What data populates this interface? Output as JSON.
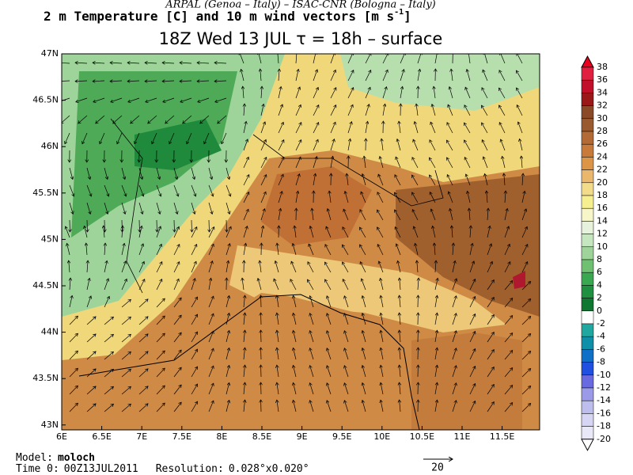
{
  "header": {
    "line1": "ARPAL (Genoa – Italy)  –  ISAC-CNR (Bologna – Italy)",
    "line2": "2 m Temperature [C] and 10 m wind vectors [m s",
    "line2_sup": "-1",
    "line2_end": "]",
    "line3": "18Z Wed 13 JUL  τ = 18h  –  surface"
  },
  "map": {
    "lat_ticks": [
      "47N",
      "46.5N",
      "46N",
      "45.5N",
      "45N",
      "44.5N",
      "44N",
      "43.5N",
      "43N"
    ],
    "lon_ticks": [
      "6E",
      "6.5E",
      "7E",
      "7.5E",
      "8E",
      "8.5E",
      "9E",
      "9.5E",
      "10E",
      "10.5E",
      "11E",
      "11.5E"
    ]
  },
  "colorbar": {
    "labels": [
      38,
      36,
      34,
      32,
      30,
      28,
      26,
      24,
      22,
      20,
      18,
      16,
      14,
      12,
      10,
      8,
      6,
      4,
      2,
      0,
      -2,
      -4,
      -6,
      -8,
      -10,
      -12,
      -14,
      -16,
      -18,
      -20
    ],
    "colors": [
      "#e8001e",
      "#e02040",
      "#c0102a",
      "#9a1818",
      "#8a4a28",
      "#9a5a30",
      "#b36a34",
      "#c87a3a",
      "#dc9546",
      "#eab86c",
      "#f2dc8a",
      "#f5ef90",
      "#f7f6c8",
      "#e6f2dc",
      "#c6e6c0",
      "#9ed49a",
      "#6fc070",
      "#3aa850",
      "#1f9040",
      "#0f7830",
      "#ffffff",
      "#20a8a0",
      "#1090a8",
      "#1070c8",
      "#2050e0",
      "#6a6ae0",
      "#9a9ae8",
      "#bdbdee",
      "#d6d6f4",
      "#e8e8f8",
      "#ffffff"
    ]
  },
  "footer": {
    "model_label": "Model:",
    "model": "moloch",
    "time_label": "Time 0:",
    "time": "00Z13JUL2011",
    "res_label": "Resolution:",
    "res": "0.028°x0.020°",
    "vector_ref": "20"
  }
}
